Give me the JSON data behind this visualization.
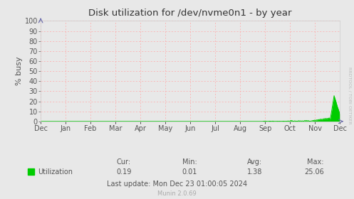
{
  "title": "Disk utilization for /dev/nvme0n1 - by year",
  "ylabel": "% busy",
  "background_color": "#e8e8e8",
  "plot_bg_color": "#e8e8e8",
  "grid_color": "#ffaaaa",
  "line_color": "#00cc00",
  "fill_color": "#00cc00",
  "ylim": [
    0,
    100
  ],
  "yticks": [
    0,
    10,
    20,
    30,
    40,
    50,
    60,
    70,
    80,
    90,
    100
  ],
  "x_labels": [
    "Dec",
    "Jan",
    "Feb",
    "Mar",
    "Apr",
    "May",
    "Jun",
    "Jul",
    "Aug",
    "Sep",
    "Oct",
    "Nov",
    "Dec"
  ],
  "cur": "0.19",
  "min_val": "0.01",
  "avg": "1.38",
  "max_val": "25.06",
  "legend_label": "Utilization",
  "last_update": "Last update: Mon Dec 23 01:00:05 2024",
  "munin_version": "Munin 2.0.69",
  "rrdtool_label": "RRDTOOL / TOBI OETIKER",
  "arrow_color": "#6666aa",
  "title_color": "#333333",
  "label_color": "#555555",
  "stats_color": "#555555"
}
